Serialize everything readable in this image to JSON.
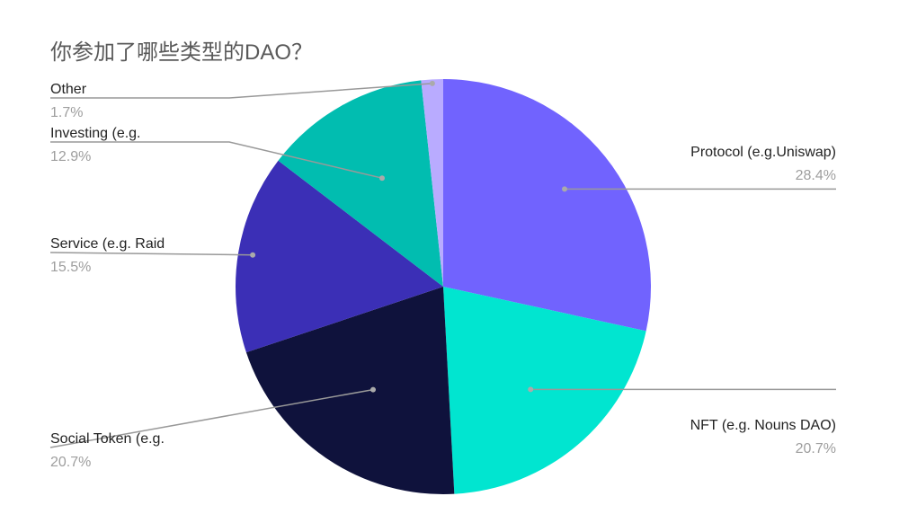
{
  "chart_data": {
    "type": "pie",
    "title": "你参加了哪些类型的DAO？",
    "start_angle_deg": 0,
    "direction": "clockwise",
    "slices": [
      {
        "label": "Protocol (e.g.Uniswap)",
        "value": 28.4,
        "percent_label": "28.4%",
        "color": "#7163fe"
      },
      {
        "label": "NFT (e.g. Nouns DAO)",
        "value": 20.7,
        "percent_label": "20.7%",
        "color": "#01e5d0"
      },
      {
        "label": "Social Token (e.g.",
        "value": 20.7,
        "percent_label": "20.7%",
        "color": "#0f123c"
      },
      {
        "label": "Service (e.g. Raid",
        "value": 15.5,
        "percent_label": "15.5%",
        "color": "#3b2fb6"
      },
      {
        "label": "Investing (e.g.",
        "value": 12.9,
        "percent_label": "12.9%",
        "color": "#01bdb0"
      },
      {
        "label": "Other",
        "value": 1.7,
        "percent_label": "1.7%",
        "color": "#b9abff"
      }
    ],
    "legend": "none",
    "labels": "outside with leader lines"
  }
}
